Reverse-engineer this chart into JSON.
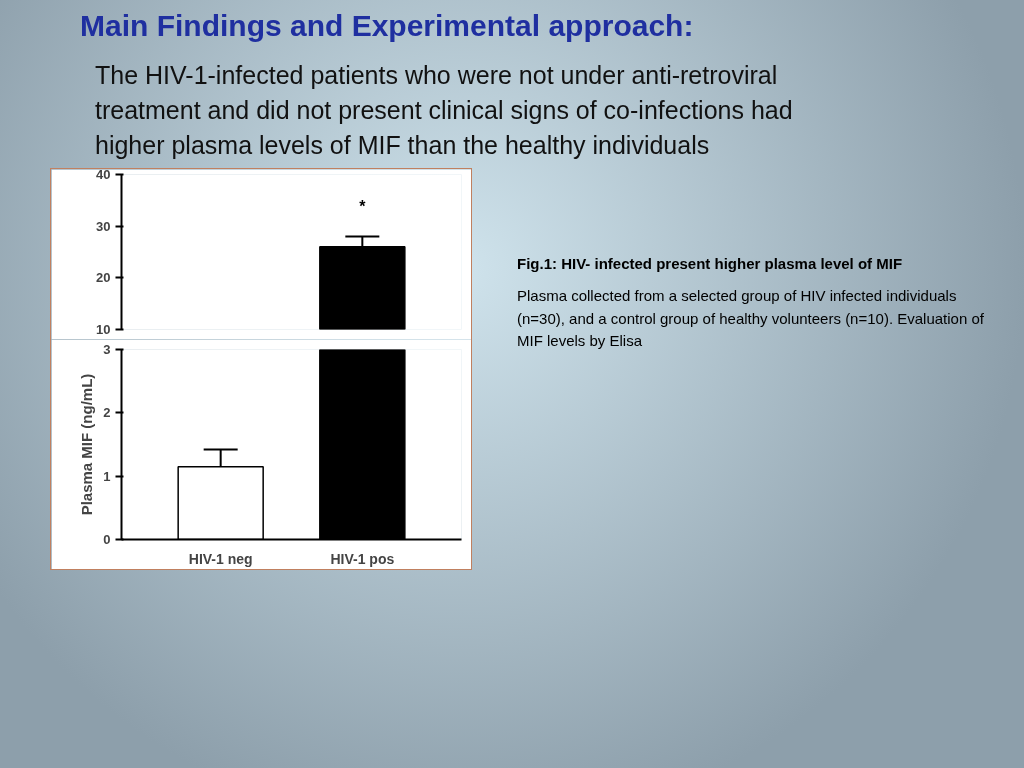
{
  "chart_data": [
    {
      "type": "bar",
      "title": "Main Findings and Experimental approach:",
      "subtitle": "The HIV-1-infected patients who were not under anti-retroviral treatment and did not present clinical signs of co-infections had higher plasma levels of MIF than the healthy individuals",
      "categories": [
        "HIV-1 neg",
        "HIV-1 pos"
      ],
      "values": [
        null,
        26
      ],
      "colors": [
        "#ffffff",
        "#000000"
      ],
      "errors": [
        null,
        [
          26,
          28
        ]
      ],
      "ylim": [
        10,
        40
      ],
      "yticks": [
        10,
        20,
        30,
        40
      ],
      "tick_labels": "y",
      "grid": false,
      "annotations": [
        {
          "text": "*",
          "x": "HIV-1 pos",
          "y": 28
        },
        "Fig.1: HIV- infected present higher plasma level of MIF",
        "Plasma collected from a selected group of HIV infected individuals (n=30), and a control group of healthy volunteers (n=10). Evaluation of MIF levels  by Elisa"
      ]
    },
    {
      "type": "bar",
      "categories": [
        "HIV-1 neg",
        "HIV-1 pos"
      ],
      "values": [
        1.15,
        3
      ],
      "colors": [
        "#ffffff",
        "#000000"
      ],
      "errors": [
        [
          1.15,
          1.42
        ],
        null
      ],
      "ylim": [
        0,
        3
      ],
      "yticks": [
        0,
        1,
        2,
        3
      ],
      "ylabel": "Plasma MIF (ng/mL)",
      "grid": false
    }
  ]
}
